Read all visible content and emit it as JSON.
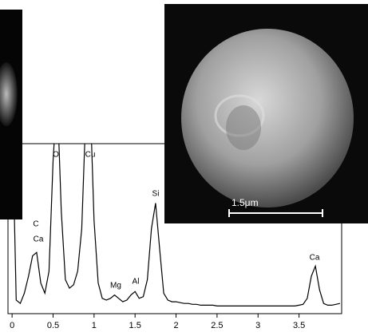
{
  "chart_data": {
    "type": "line",
    "color": "#000000",
    "x": [
      0,
      0.05,
      0.1,
      0.15,
      0.2,
      0.25,
      0.3,
      0.35,
      0.4,
      0.45,
      0.5,
      0.55,
      0.6,
      0.65,
      0.7,
      0.75,
      0.8,
      0.85,
      0.9,
      0.95,
      1,
      1.05,
      1.1,
      1.15,
      1.2,
      1.25,
      1.3,
      1.35,
      1.4,
      1.45,
      1.5,
      1.55,
      1.6,
      1.65,
      1.7,
      1.75,
      1.8,
      1.85,
      1.9,
      1.95,
      2,
      2.05,
      2.1,
      2.15,
      2.2,
      2.25,
      2.3,
      2.35,
      2.4,
      2.45,
      2.5,
      2.55,
      2.6,
      2.65,
      2.7,
      2.75,
      2.8,
      2.85,
      2.9,
      2.95,
      3,
      3.05,
      3.1,
      3.15,
      3.2,
      3.25,
      3.3,
      3.35,
      3.4,
      3.45,
      3.5,
      3.55,
      3.6,
      3.65,
      3.7,
      3.75,
      3.8,
      3.85,
      3.9,
      3.95,
      4
    ],
    "values": [
      120,
      8,
      6,
      12,
      22,
      34,
      36,
      18,
      12,
      25,
      90,
      130,
      60,
      20,
      15,
      17,
      25,
      50,
      120,
      130,
      55,
      18,
      9,
      8,
      9,
      11,
      9,
      7,
      8,
      11,
      13,
      9,
      10,
      20,
      50,
      65,
      38,
      12,
      8,
      7,
      7,
      6.5,
      6,
      6,
      5.5,
      5.5,
      5,
      5,
      5,
      5,
      4.5,
      4.5,
      4.5,
      4.5,
      4.5,
      4.5,
      4.5,
      4.5,
      4.5,
      4.5,
      4.5,
      4.5,
      4.5,
      4.5,
      4.5,
      4.5,
      4.5,
      4.5,
      4.5,
      4.5,
      5,
      5.5,
      9,
      22,
      28,
      14,
      6,
      5,
      5,
      5.5,
      6
    ],
    "xlim": [
      -0.05,
      4.02
    ],
    "ylim": [
      0,
      100
    ],
    "xticks": [
      0,
      0.5,
      1,
      1.5,
      2,
      2.5,
      3,
      3.5
    ],
    "annotations": [
      "C",
      "Ca",
      "O",
      "Cu",
      "Mg",
      "Al",
      "Si",
      "Ca"
    ],
    "scale_bar": "1.5μm"
  }
}
